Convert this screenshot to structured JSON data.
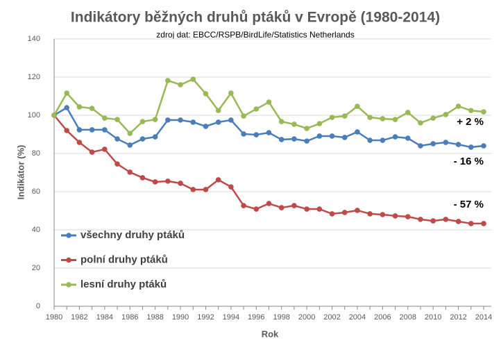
{
  "chart_data": {
    "type": "line",
    "title": "Indikátory běžných druhů ptáků v Evropě (1980-2014)",
    "subtitle": "zdroj dat: EBCC/RSPB/BirdLife/Statistics  Netherlands",
    "x_label": "Rok",
    "y_label": "Indikátor (%)",
    "x": [
      1980,
      1981,
      1982,
      1983,
      1984,
      1985,
      1986,
      1987,
      1988,
      1989,
      1990,
      1991,
      1992,
      1993,
      1994,
      1995,
      1996,
      1997,
      1998,
      1999,
      2000,
      2001,
      2002,
      2003,
      2004,
      2005,
      2006,
      2007,
      2008,
      2009,
      2010,
      2011,
      2012,
      2013,
      2014
    ],
    "xlim": [
      1980,
      2014
    ],
    "xticks": [
      1980,
      1982,
      1984,
      1986,
      1988,
      1990,
      1992,
      1994,
      1996,
      1998,
      2000,
      2002,
      2004,
      2006,
      2008,
      2010,
      2012,
      2014
    ],
    "ylim": [
      0,
      140
    ],
    "yticks": [
      0,
      20,
      40,
      60,
      80,
      100,
      120,
      140
    ],
    "grid": true,
    "legend_position": "lower left",
    "series": [
      {
        "name": "všechny druhy ptáků",
        "color": "#4a7ebb",
        "values": [
          100,
          104,
          92.4,
          92.4,
          92.4,
          87.6,
          84.4,
          87.6,
          88.7,
          97.5,
          97.5,
          96.4,
          94.2,
          96.4,
          97.5,
          90.2,
          89.8,
          90.9,
          87.3,
          87.6,
          86.5,
          89.1,
          89.1,
          88.4,
          91.3,
          86.9,
          86.9,
          88.7,
          88,
          84,
          85.1,
          85.8,
          84.7,
          83.3,
          84
        ]
      },
      {
        "name": "polní druhy ptáků",
        "color": "#be4b48",
        "values": [
          100,
          92,
          85.8,
          80.7,
          82.2,
          74.5,
          70.2,
          67.3,
          65.1,
          65.5,
          64.4,
          61.1,
          61.1,
          66.2,
          62.5,
          52.7,
          50.9,
          53.8,
          51.6,
          52.7,
          50.9,
          50.9,
          48.4,
          49.1,
          50.2,
          48.4,
          48,
          47.3,
          46.9,
          45.5,
          44.7,
          45.5,
          44.4,
          43.3,
          43.3
        ]
      },
      {
        "name": "lesní druhy ptáků",
        "color": "#98b954",
        "values": [
          100,
          111.6,
          104.4,
          103.6,
          98.5,
          97.8,
          90.5,
          96.7,
          97.8,
          118.2,
          116,
          118.9,
          111.3,
          102.5,
          111.6,
          99.6,
          103.3,
          106.9,
          96.7,
          95.3,
          93.1,
          95.6,
          98.9,
          99.6,
          104.7,
          98.9,
          98.2,
          97.8,
          101.5,
          96,
          98.5,
          100.4,
          104.7,
          102.5,
          101.8
        ]
      }
    ],
    "annotations": [
      "+ 2 %",
      "- 16 %",
      "- 57 %"
    ]
  }
}
